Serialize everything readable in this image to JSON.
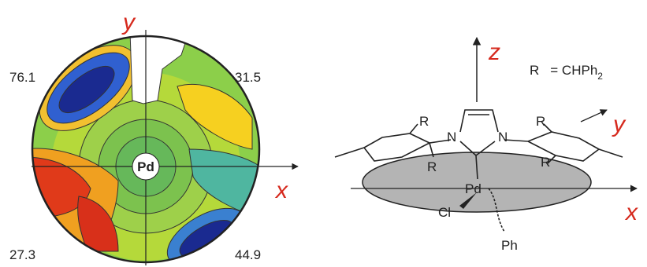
{
  "steric_map": {
    "axis_y": "y",
    "axis_x": "x",
    "center": "Pd",
    "quadrants": [
      76.1,
      31.5,
      27.3,
      44.9
    ]
  },
  "structure": {
    "axis_z": "z",
    "axis_y": "y",
    "axis_x": "x",
    "legend": {
      "symbol": "R",
      "formula": "= CHPh",
      "subscript": "2"
    },
    "atoms": {
      "r1": "R",
      "r2": "R",
      "r3": "R",
      "r4": "R",
      "n1": "N",
      "n2": "N",
      "metal": "Pd",
      "halide": "Cl",
      "phenyl": "Ph"
    }
  }
}
